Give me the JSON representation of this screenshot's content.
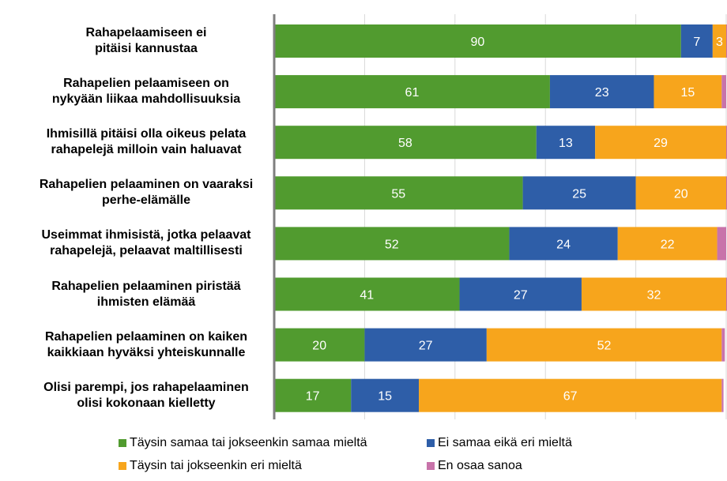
{
  "chart_data": {
    "type": "bar",
    "orientation": "horizontal",
    "stacked": true,
    "percent": true,
    "xlim": [
      0,
      100
    ],
    "grid": true,
    "legend_position": "bottom",
    "categories": [
      [
        "Rahapelaamiseen ei",
        "pitäisi kannustaa"
      ],
      [
        "Rahapelien pelaamiseen on",
        "nykyään liikaa mahdollisuuksia"
      ],
      [
        "Ihmisillä pitäisi olla oikeus pelata",
        "rahapelejä milloin vain haluavat"
      ],
      [
        "Rahapelien pelaaminen on vaaraksi",
        "perhe-elämälle"
      ],
      [
        "Useimmat ihmisistä, jotka pelaavat",
        "rahapelejä, pelaavat maltillisesti"
      ],
      [
        "Rahapelien pelaaminen piristää",
        "ihmisten elämää"
      ],
      [
        "Rahapelien pelaaminen on kaiken",
        "kaikkiaan hyväksi yhteiskunnalle"
      ],
      [
        "Olisi parempi, jos rahapelaaminen",
        "olisi kokonaan kielletty"
      ]
    ],
    "series": [
      {
        "name": "Täysin samaa tai jokseenkin samaa mieltä",
        "color": "#519b2f",
        "values": [
          90,
          61,
          58,
          55,
          52,
          41,
          20,
          17
        ],
        "labels": [
          "90",
          "61",
          "58",
          "55",
          "52",
          "41",
          "20",
          "17"
        ]
      },
      {
        "name": "Ei samaa eikä eri mieltä",
        "color": "#2e5ea8",
        "values": [
          7,
          23,
          13,
          25,
          24,
          27,
          27,
          15
        ],
        "labels": [
          "7",
          "23",
          "13",
          "25",
          "24",
          "27",
          "27",
          "15"
        ]
      },
      {
        "name": "Täysin tai jokseenkin eri mieltä",
        "color": "#f7a51c",
        "values": [
          3,
          15,
          29,
          20,
          22,
          32,
          52,
          67
        ],
        "labels": [
          "3",
          "15",
          "29",
          "20",
          "22",
          "32",
          "52",
          "67"
        ]
      },
      {
        "name": "En osaa sanoa",
        "color": "#c873aa",
        "values": [
          0.3,
          1,
          0.3,
          0.6,
          2,
          0.4,
          0.7,
          0.4
        ],
        "labels": [
          "",
          "",
          "",
          "",
          "",
          "",
          "",
          ""
        ]
      }
    ]
  }
}
